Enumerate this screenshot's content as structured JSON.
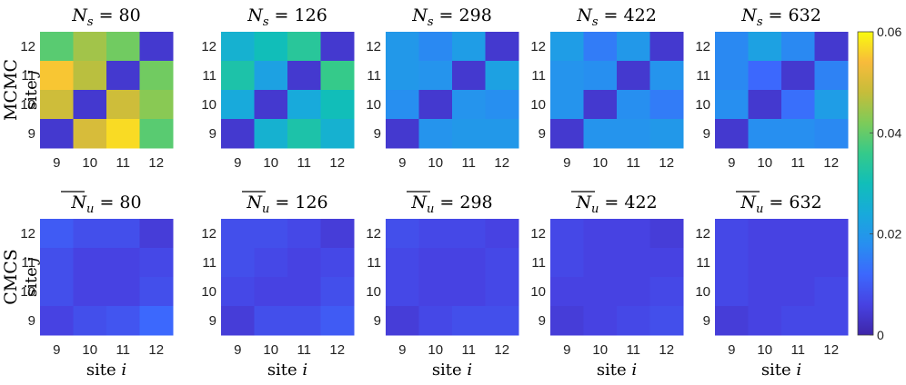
{
  "chart_data": {
    "type": "heatmap",
    "colormap": "parula",
    "clim": [
      0,
      0.06
    ],
    "colorbar": {
      "ticks": [
        0,
        0.02,
        0.04,
        0.06
      ],
      "tick_labels": [
        "0",
        "0.02",
        "0.04",
        "0.06"
      ],
      "placement": "right"
    },
    "x_ticks": [
      "9",
      "10",
      "11",
      "12"
    ],
    "y_ticks": [
      "9",
      "10",
      "11",
      "12"
    ],
    "xlabel": "site i",
    "ylabel": "site j",
    "rows": [
      {
        "label": "MCMC",
        "panels": [
          {
            "title_var": "N",
            "title_sub": "s",
            "title_over": false,
            "title_value": "80",
            "matrix": [
              [
                0.039,
                0.045,
                0.041,
                0.004
              ],
              [
                0.055,
                0.047,
                0.004,
                0.041
              ],
              [
                0.049,
                0.004,
                0.049,
                0.043
              ],
              [
                0.004,
                0.05,
                0.057,
                0.039
              ]
            ]
          },
          {
            "title_var": "N",
            "title_sub": "s",
            "title_over": false,
            "title_value": "126",
            "matrix": [
              [
                0.026,
                0.03,
                0.034,
                0.004
              ],
              [
                0.032,
                0.022,
                0.004,
                0.036
              ],
              [
                0.024,
                0.004,
                0.024,
                0.03
              ],
              [
                0.004,
                0.026,
                0.032,
                0.026
              ]
            ]
          },
          {
            "title_var": "N",
            "title_sub": "s",
            "title_over": false,
            "title_value": "298",
            "matrix": [
              [
                0.02,
                0.017,
                0.021,
                0.004
              ],
              [
                0.02,
                0.019,
                0.004,
                0.022
              ],
              [
                0.018,
                0.004,
                0.019,
                0.018
              ],
              [
                0.004,
                0.019,
                0.02,
                0.02
              ]
            ]
          },
          {
            "title_var": "N",
            "title_sub": "s",
            "title_over": false,
            "title_value": "422",
            "matrix": [
              [
                0.021,
                0.015,
                0.02,
                0.004
              ],
              [
                0.019,
                0.018,
                0.004,
                0.019
              ],
              [
                0.019,
                0.004,
                0.018,
                0.015
              ],
              [
                0.004,
                0.019,
                0.019,
                0.02
              ]
            ]
          },
          {
            "title_var": "N",
            "title_sub": "s",
            "title_over": false,
            "title_value": "632",
            "matrix": [
              [
                0.017,
                0.022,
                0.017,
                0.004
              ],
              [
                0.017,
                0.012,
                0.004,
                0.016
              ],
              [
                0.018,
                0.004,
                0.013,
                0.021
              ],
              [
                0.004,
                0.018,
                0.018,
                0.017
              ]
            ]
          }
        ]
      },
      {
        "label": "CMCS",
        "panels": [
          {
            "title_var": "N",
            "title_sub": "u",
            "title_over": true,
            "title_value": "80",
            "matrix": [
              [
                0.01,
                0.008,
                0.008,
                0.005
              ],
              [
                0.008,
                0.006,
                0.006,
                0.007
              ],
              [
                0.008,
                0.006,
                0.006,
                0.008
              ],
              [
                0.006,
                0.008,
                0.009,
                0.012
              ]
            ]
          },
          {
            "title_var": "N",
            "title_sub": "u",
            "title_over": true,
            "title_value": "126",
            "matrix": [
              [
                0.008,
                0.008,
                0.007,
                0.005
              ],
              [
                0.008,
                0.007,
                0.006,
                0.007
              ],
              [
                0.007,
                0.006,
                0.006,
                0.008
              ],
              [
                0.005,
                0.008,
                0.008,
                0.01
              ]
            ]
          },
          {
            "title_var": "N",
            "title_sub": "u",
            "title_over": true,
            "title_value": "298",
            "matrix": [
              [
                0.008,
                0.007,
                0.007,
                0.006
              ],
              [
                0.007,
                0.006,
                0.006,
                0.007
              ],
              [
                0.007,
                0.006,
                0.006,
                0.007
              ],
              [
                0.005,
                0.007,
                0.008,
                0.008
              ]
            ]
          },
          {
            "title_var": "N",
            "title_sub": "u",
            "title_over": true,
            "title_value": "422",
            "matrix": [
              [
                0.007,
                0.006,
                0.006,
                0.005
              ],
              [
                0.007,
                0.006,
                0.006,
                0.006
              ],
              [
                0.006,
                0.006,
                0.006,
                0.007
              ],
              [
                0.005,
                0.006,
                0.007,
                0.008
              ]
            ]
          },
          {
            "title_var": "N",
            "title_sub": "u",
            "title_over": true,
            "title_value": "632",
            "matrix": [
              [
                0.007,
                0.006,
                0.006,
                0.006
              ],
              [
                0.007,
                0.006,
                0.006,
                0.006
              ],
              [
                0.007,
                0.006,
                0.006,
                0.007
              ],
              [
                0.005,
                0.006,
                0.007,
                0.007
              ]
            ]
          }
        ]
      }
    ]
  }
}
